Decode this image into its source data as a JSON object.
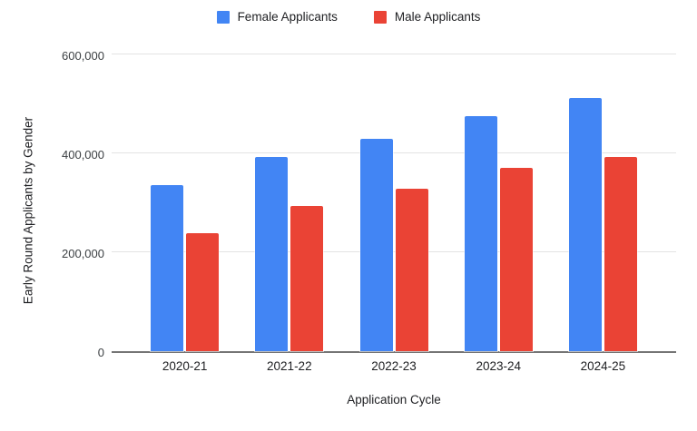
{
  "chart_data": {
    "type": "bar",
    "title": "",
    "categories": [
      "2020-21",
      "2021-22",
      "2022-23",
      "2023-24",
      "2024-25"
    ],
    "series": [
      {
        "name": "Female Applicants",
        "color": "#4285F4",
        "values": [
          335000,
          392000,
          430000,
          475000,
          512000
        ]
      },
      {
        "name": "Male Applicants",
        "color": "#EA4335",
        "values": [
          238000,
          294000,
          328000,
          370000,
          393000
        ]
      }
    ],
    "xlabel": "Application Cycle",
    "ylabel": "Early Round Applicants by Gender",
    "ylim": [
      0,
      600000
    ],
    "yticks": [
      0,
      200000,
      400000,
      600000
    ],
    "ytick_labels": [
      "0",
      "200,000",
      "400,000",
      "600,000"
    ],
    "grid": true,
    "legend_position": "top",
    "background_color": "#ffffff",
    "gridline_color": "#e3e3e3",
    "baseline_color": "#757575"
  }
}
